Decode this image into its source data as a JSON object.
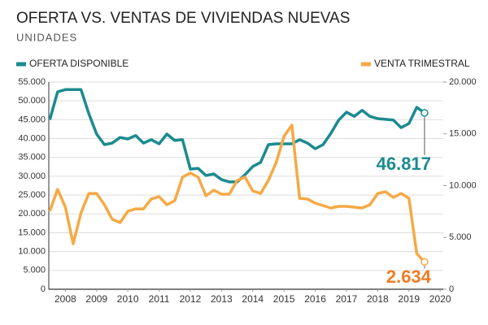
{
  "chart_data": {
    "type": "line",
    "title": "OFERTA VS. VENTAS DE VIVIENDAS NUEVAS",
    "subtitle": "UNIDADES",
    "x": [
      2008,
      2008.25,
      2008.5,
      2008.75,
      2009,
      2009.25,
      2009.5,
      2009.75,
      2010,
      2010.25,
      2010.5,
      2010.75,
      2011,
      2011.25,
      2011.5,
      2011.75,
      2012,
      2012.25,
      2012.5,
      2012.75,
      2013,
      2013.25,
      2013.5,
      2013.75,
      2014,
      2014.25,
      2014.5,
      2014.75,
      2015,
      2015.25,
      2015.5,
      2015.75,
      2016,
      2016.25,
      2016.5,
      2016.75,
      2017,
      2017.25,
      2017.5,
      2017.75,
      2018,
      2018.25,
      2018.5,
      2018.75,
      2019,
      2019.25,
      2019.5,
      2019.75,
      2020
    ],
    "series": [
      {
        "name": "OFERTA DISPONIBLE",
        "color": "#1b8b8f",
        "axis": "y",
        "values": [
          45000,
          52400,
          53000,
          53000,
          53000,
          46600,
          41200,
          38400,
          38800,
          40300,
          39900,
          40800,
          38800,
          39700,
          38600,
          41200,
          39500,
          39700,
          31900,
          32100,
          30200,
          30600,
          29100,
          28500,
          28500,
          30400,
          32600,
          33700,
          38400,
          38600,
          38600,
          38600,
          39700,
          38800,
          37300,
          38400,
          41400,
          44900,
          47000,
          45900,
          47500,
          45900,
          45300,
          45100,
          44900,
          42900,
          44000,
          48300,
          46817
        ],
        "value_labels": [
          null,
          null,
          null,
          null,
          null,
          null,
          null,
          null,
          null,
          null,
          null,
          null,
          null,
          null,
          null,
          null,
          null,
          null,
          null,
          null,
          null,
          null,
          null,
          null,
          null,
          null,
          null,
          null,
          null,
          null,
          null,
          null,
          null,
          null,
          null,
          null,
          null,
          null,
          null,
          null,
          null,
          null,
          null,
          null,
          null,
          null,
          null,
          null,
          "46.817"
        ]
      },
      {
        "name": "VENTA TRIMESTRAL",
        "color": "#f6a945",
        "label_color": "#f07c22",
        "axis": "y2",
        "values": [
          7530,
          9650,
          7920,
          4390,
          7370,
          9250,
          9250,
          8160,
          6750,
          6430,
          7530,
          7760,
          7760,
          8710,
          8940,
          8160,
          8550,
          10820,
          11220,
          10820,
          9020,
          9570,
          9180,
          9180,
          10510,
          10820,
          9490,
          9250,
          10510,
          12240,
          14750,
          15840,
          8780,
          8710,
          8310,
          8080,
          7840,
          8000,
          8000,
          7920,
          7840,
          8160,
          9250,
          9410,
          8860,
          9250,
          8780,
          3450,
          2634
        ],
        "value_labels": [
          null,
          null,
          null,
          null,
          null,
          null,
          null,
          null,
          null,
          null,
          null,
          null,
          null,
          null,
          null,
          null,
          null,
          null,
          null,
          null,
          null,
          null,
          null,
          null,
          null,
          null,
          null,
          null,
          null,
          null,
          null,
          null,
          null,
          null,
          null,
          null,
          null,
          null,
          null,
          null,
          null,
          null,
          null,
          null,
          null,
          null,
          null,
          null,
          "2.634"
        ]
      }
    ],
    "xlim": [
      2007.97,
      2020.6
    ],
    "xticks": [
      {
        "value": 2008.5,
        "label": "2008"
      },
      {
        "value": 2009.5,
        "label": "2009"
      },
      {
        "value": 2010.5,
        "label": "2010"
      },
      {
        "value": 2011.5,
        "label": "2011"
      },
      {
        "value": 2012.5,
        "label": "2012"
      },
      {
        "value": 2013.5,
        "label": "2013"
      },
      {
        "value": 2014.5,
        "label": "2014"
      },
      {
        "value": 2015.5,
        "label": "2015"
      },
      {
        "value": 2016.5,
        "label": "2016"
      },
      {
        "value": 2017.5,
        "label": "2017"
      },
      {
        "value": 2018.5,
        "label": "2018"
      },
      {
        "value": 2019.5,
        "label": "2019"
      },
      {
        "value": 2020.5,
        "label": "2020"
      }
    ],
    "ylim": [
      0,
      55000
    ],
    "yticks": [
      0,
      {
        "value": 5000,
        "label": "5.000"
      },
      {
        "value": 10000,
        "label": "10.000"
      },
      {
        "value": 15000,
        "label": "15.000"
      },
      {
        "value": 20000,
        "label": "20.000"
      },
      {
        "value": 25000,
        "label": "25.000"
      },
      {
        "value": 30000,
        "label": "30.000"
      },
      {
        "value": 35000,
        "label": "35.000"
      },
      {
        "value": 40000,
        "label": "40.000"
      },
      {
        "value": 45000,
        "label": "45.000"
      },
      {
        "value": 50000,
        "label": "50.000"
      },
      {
        "value": 55000,
        "label": "55.000"
      }
    ],
    "y2lim": [
      0,
      20000
    ],
    "y2ticks": [
      0,
      {
        "value": 5000,
        "label": "5.000"
      },
      {
        "value": 10000,
        "label": "10.000"
      },
      {
        "value": 15000,
        "label": "15.000"
      },
      {
        "value": 20000,
        "label": "20.000"
      }
    ],
    "grid": true
  }
}
